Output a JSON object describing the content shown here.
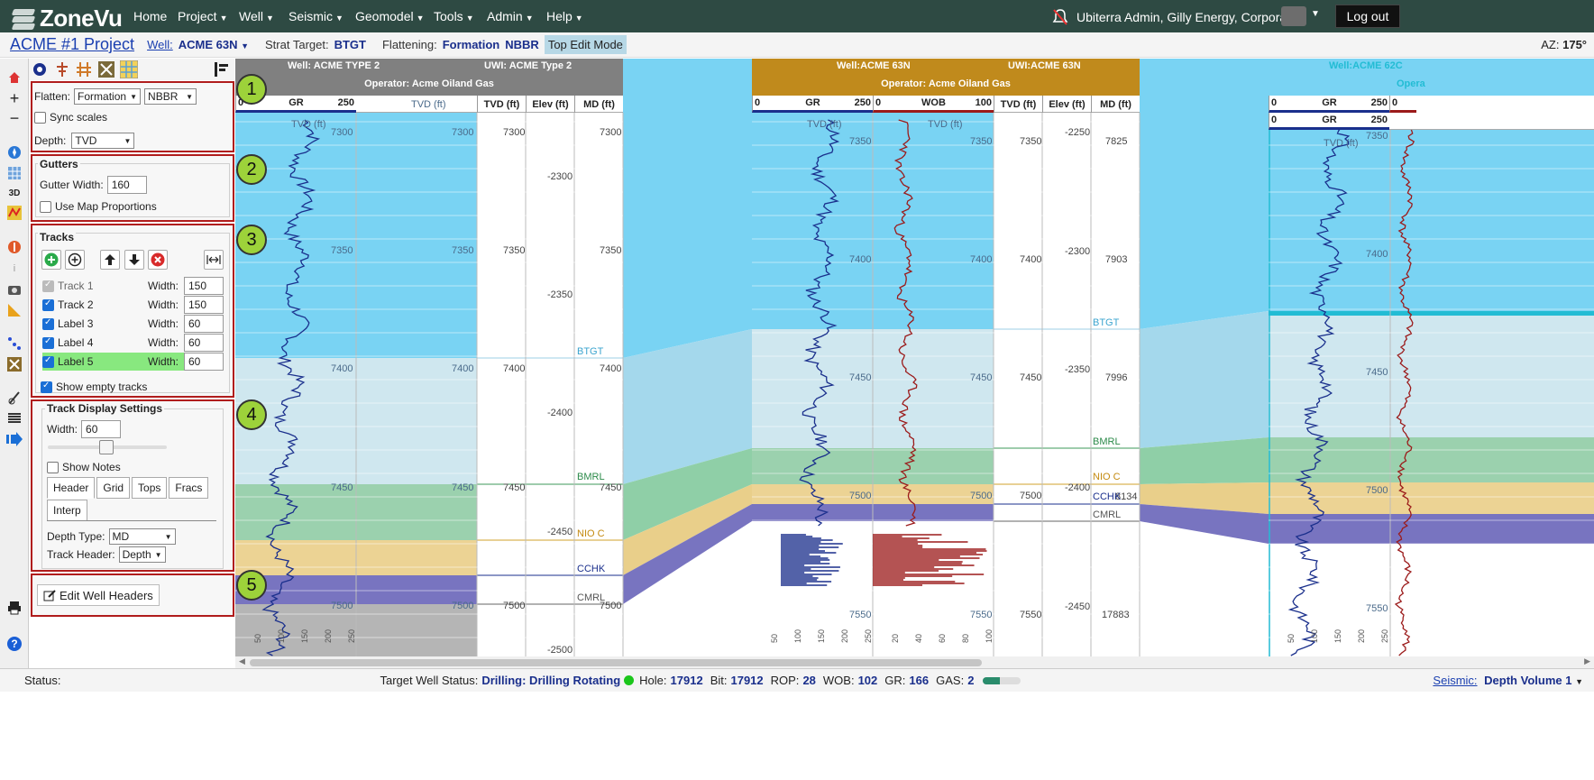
{
  "nav": {
    "logo": "ZoneVu",
    "items": [
      {
        "label": "Home",
        "caret": false
      },
      {
        "label": "Project",
        "caret": true
      },
      {
        "label": "Well",
        "caret": true
      },
      {
        "label": "Seismic",
        "caret": true
      },
      {
        "label": "Geomodel",
        "caret": true
      },
      {
        "label": "Tools",
        "caret": true
      },
      {
        "label": "Admin",
        "caret": true
      },
      {
        "label": "Help",
        "caret": true
      }
    ],
    "user": "Ubiterra Admin, Gilly Energy, Corporate",
    "logout": "Log out"
  },
  "subbar": {
    "project": "ACME #1 Project",
    "well_label": "Well:",
    "well_value": "ACME 63N",
    "strat_label": "Strat Target:",
    "strat_value": "BTGT",
    "flattening_label": "Flattening:",
    "flattening_value": "Formation",
    "flattening_top": "NBBR",
    "mode": "Top Edit Mode",
    "az_label": "AZ:",
    "az_value": "175°"
  },
  "panel": {
    "flatten_label": "Flatten:",
    "flatten_type": "Formation",
    "flatten_top": "NBBR",
    "sync_scales": "Sync scales",
    "depth_label": "Depth:",
    "depth_value": "TVD",
    "gutters_title": "Gutters",
    "gutter_width_label": "Gutter Width:",
    "gutter_width": "160",
    "use_map_prop": "Use Map Proportions",
    "tracks_title": "Tracks",
    "tracks": [
      {
        "name": "Track 1",
        "width": "150",
        "checked": true,
        "disabled": true
      },
      {
        "name": "Track 2",
        "width": "150",
        "checked": true,
        "disabled": false
      },
      {
        "name": "Label 3",
        "width": "60",
        "checked": true,
        "disabled": false
      },
      {
        "name": "Label 4",
        "width": "60",
        "checked": true,
        "disabled": false
      },
      {
        "name": "Label 5",
        "width": "60",
        "checked": true,
        "disabled": false
      }
    ],
    "width_label": "Width:",
    "show_empty": "Show empty tracks",
    "tds_title": "Track Display Settings",
    "tds_width_label": "Width:",
    "tds_width": "60",
    "show_notes": "Show Notes",
    "tabs": [
      "Header",
      "Grid",
      "Tops",
      "Fracs",
      "Interp"
    ],
    "depth_type_label": "Depth Type:",
    "depth_type": "MD",
    "track_header_label": "Track Header:",
    "track_header": "Depth",
    "edit_headers": "Edit Well Headers"
  },
  "badges": [
    "1",
    "2",
    "3",
    "4",
    "5"
  ],
  "wells": {
    "w1": {
      "name": "Well: ACME TYPE 2",
      "uwi": "UWI: ACME Type 2",
      "operator": "Operator: Acme Oiland Gas"
    },
    "w2": {
      "name": "Well:ACME 63N",
      "uwi": "UWI:ACME 63N",
      "operator": "Operator: Acme Oiland Gas"
    },
    "w3": {
      "name": "Well:ACME 62C",
      "operator": "Opera"
    }
  },
  "colhdr": {
    "gr": "GR",
    "wob": "WOB",
    "tvd": "TVD (ft)",
    "elev": "Elev (ft)",
    "md": "MD (ft)",
    "zero": "0",
    "gr_max": "250",
    "wob_max": "100"
  },
  "tvd_watermark": "TVD (ft)",
  "depth_labels": {
    "w1_tvd": [
      "7300",
      "7350",
      "7400",
      "7450",
      "7500"
    ],
    "w1_elev": [
      "-2300",
      "-2350",
      "-2400",
      "-2450",
      "-2500"
    ],
    "w2_tvd": [
      "7350",
      "7400",
      "7450",
      "7500",
      "7550"
    ],
    "w2_elev": [
      "-2250",
      "-2300",
      "-2350",
      "-2400",
      "-2450"
    ],
    "w2_md": [
      "7825",
      "7903",
      "7996",
      "17883"
    ],
    "w2_md_ccchk": "8134",
    "w3_tvd": [
      "7350",
      "7400",
      "7450",
      "7500",
      "7550"
    ]
  },
  "gr_axis": [
    "50",
    "100",
    "150",
    "200",
    "250"
  ],
  "wob_axis": [
    "20",
    "40",
    "60",
    "80",
    "100"
  ],
  "tops": {
    "btgt": "BTGT",
    "bmrl": "BMRL",
    "nioc": "NIO C",
    "cchk": "CCHK",
    "cmrl": "CMRL"
  },
  "status": {
    "label": "Status:",
    "target_label": "Target Well Status:",
    "target_value": "Drilling: Drilling Rotating",
    "hole_label": "Hole:",
    "hole": "17912",
    "bit_label": "Bit:",
    "bit": "17912",
    "rop_label": "ROP:",
    "rop": "28",
    "wob_label": "WOB:",
    "wob": "102",
    "gr_label": "GR:",
    "gr": "166",
    "gas_label": "GAS:",
    "gas": "2",
    "gas_fraction": 0.45,
    "seismic_label": "Seismic:",
    "seismic_value": "Depth Volume 1"
  },
  "colors": {
    "nav_bg": "#2e4a43",
    "panel_border": "#b01c1c",
    "badge": "#9dd23a",
    "btgt_zone": "#79d3f3",
    "bmrl_zone": "#a4d8ec",
    "nioc_zone": "#8fcfa7",
    "cchk_zone": "#e9cf8a",
    "cmrl_zone": "#7874c0",
    "header_w1": "#808080",
    "header_w2": "#c08a1c"
  }
}
